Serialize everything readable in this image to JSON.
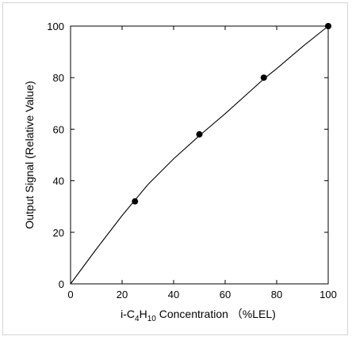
{
  "chart_data": {
    "type": "scatter",
    "title": "",
    "xlabel": {
      "prefix": "i-C",
      "sub1": "4",
      "mid": "H",
      "sub2": "10",
      "suffix": " Concentration （%LEL)"
    },
    "ylabel": "Output Signal (Relative Value)",
    "xlim": [
      0,
      100
    ],
    "ylim": [
      0,
      100
    ],
    "xticks": [
      0,
      20,
      40,
      60,
      80,
      100
    ],
    "yticks": [
      0,
      20,
      40,
      60,
      80,
      100
    ],
    "grid": false,
    "series": [
      {
        "marker": "filled-circle",
        "x": [
          25,
          50,
          75,
          100
        ],
        "y": [
          32,
          58,
          80,
          100
        ]
      }
    ],
    "fit_curve": {
      "x": [
        0,
        10,
        20,
        25,
        30,
        40,
        50,
        60,
        70,
        75,
        80,
        90,
        100
      ],
      "y": [
        0,
        13.5,
        26.5,
        32.5,
        38.5,
        48.5,
        57.5,
        66,
        75,
        79.5,
        83.5,
        92,
        100
      ]
    },
    "colors": {
      "axis": "#000000",
      "marker": "#000000",
      "curve": "#000000",
      "border": "#d4d4d4"
    }
  }
}
